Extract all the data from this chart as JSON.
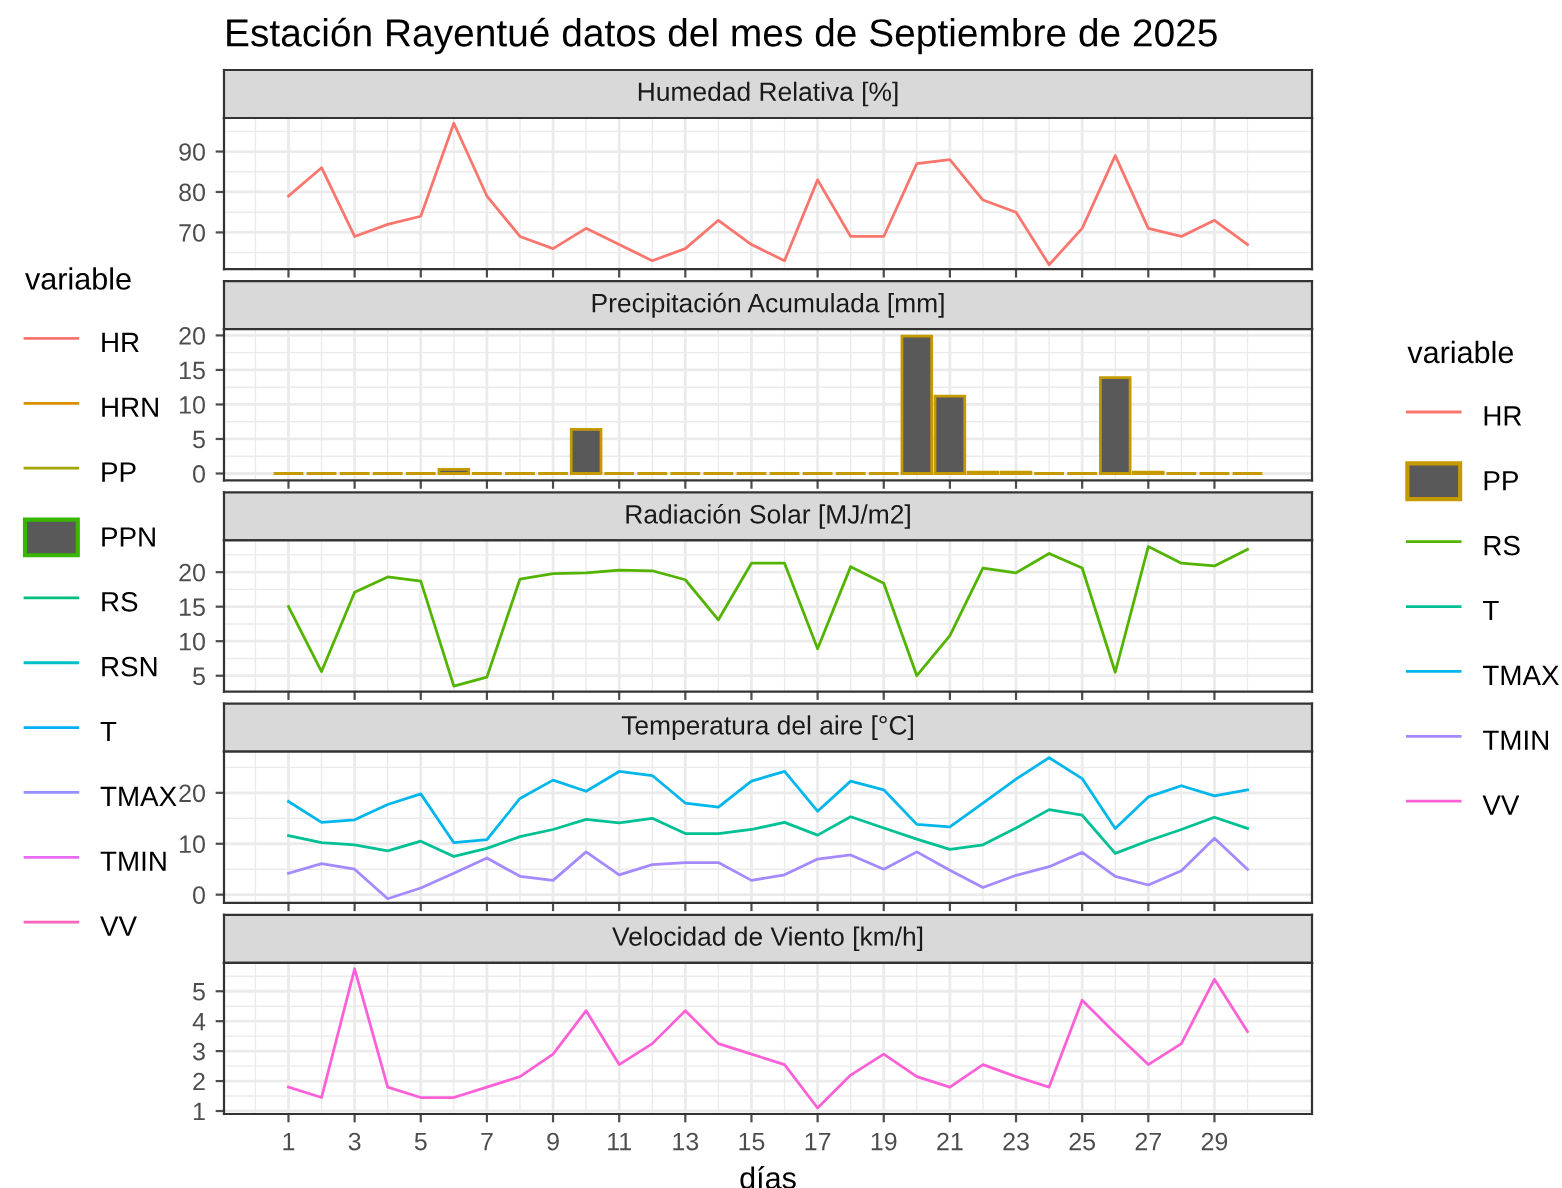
{
  "chart_data": [
    {
      "type": "other",
      "title": "Estación Rayentué datos del mes de Septiembre de 2025",
      "legend_title": "variable",
      "legend": "left",
      "series": [
        {
          "name": "HR",
          "color": "#f8766d",
          "type": "line"
        },
        {
          "name": "HRN",
          "color": "#d89000",
          "type": "line"
        },
        {
          "name": "PP",
          "color": "#a3a500",
          "type": "line"
        },
        {
          "name": "PPN",
          "color": "#39b600",
          "type": "bar"
        },
        {
          "name": "RS",
          "color": "#00bf7d",
          "type": "line"
        },
        {
          "name": "RSN",
          "color": "#00bfc4",
          "type": "line"
        },
        {
          "name": "T",
          "color": "#00b0f6",
          "type": "line"
        },
        {
          "name": "TMAX",
          "color": "#9590ff",
          "type": "line"
        },
        {
          "name": "TMIN",
          "color": "#e76bf3",
          "type": "line"
        },
        {
          "name": "VV",
          "color": "#ff62bc",
          "type": "line"
        }
      ]
    },
    {
      "type": "line",
      "title": "Humedad Relativa [%]",
      "legend_title": "variable",
      "legend": "right",
      "grid": true,
      "tick_labels": "y",
      "x": [
        1,
        2,
        3,
        4,
        5,
        6,
        7,
        8,
        9,
        10,
        11,
        12,
        13,
        14,
        15,
        16,
        17,
        18,
        19,
        20,
        21,
        22,
        23,
        24,
        25,
        26,
        27,
        28,
        29,
        30
      ],
      "xlim": [
        -0.95,
        31.95
      ],
      "xticks": [
        1,
        3,
        5,
        7,
        9,
        11,
        13,
        15,
        17,
        19,
        21,
        23,
        25,
        27,
        29
      ],
      "ylim": [
        60.9,
        98.3
      ],
      "yticks": [
        70,
        80,
        90
      ],
      "series": [
        {
          "name": "HR",
          "color": "#f8766d",
          "values": [
            79,
            86,
            69,
            72,
            74,
            97,
            79,
            69,
            66,
            71,
            67,
            63,
            66,
            73,
            67,
            63,
            83,
            69,
            69,
            87,
            88,
            78,
            75,
            62,
            71,
            89,
            71,
            69,
            73,
            67
          ]
        }
      ]
    },
    {
      "type": "bar",
      "title": "Precipitación Acumulada [mm]",
      "legend": "right",
      "grid": true,
      "tick_labels": "y",
      "x": [
        1,
        2,
        3,
        4,
        5,
        6,
        7,
        8,
        9,
        10,
        11,
        12,
        13,
        14,
        15,
        16,
        17,
        18,
        19,
        20,
        21,
        22,
        23,
        24,
        25,
        26,
        27,
        28,
        29,
        30
      ],
      "xlim": [
        -0.95,
        31.95
      ],
      "xticks": [
        1,
        3,
        5,
        7,
        9,
        11,
        13,
        15,
        17,
        19,
        21,
        23,
        25,
        27,
        29
      ],
      "ylim": [
        -1.0,
        20.9
      ],
      "yticks": [
        0,
        5,
        10,
        15,
        20
      ],
      "series": [
        {
          "name": "PP",
          "color": "#c49a00",
          "values": [
            0,
            0,
            0,
            0,
            0,
            0.6,
            0,
            0,
            0,
            6.4,
            0,
            0,
            0,
            0,
            0,
            0,
            0,
            0,
            0,
            19.9,
            11.2,
            0.2,
            0.2,
            0,
            0,
            13.9,
            0.2,
            0,
            0,
            0
          ]
        }
      ]
    },
    {
      "type": "line",
      "title": "Radiación Solar [MJ/m2]",
      "legend": "right",
      "grid": true,
      "tick_labels": "y",
      "x": [
        1,
        2,
        3,
        4,
        5,
        6,
        7,
        8,
        9,
        10,
        11,
        12,
        13,
        14,
        15,
        16,
        17,
        18,
        19,
        20,
        21,
        22,
        23,
        24,
        25,
        26,
        27,
        28,
        29,
        30
      ],
      "xlim": [
        -0.95,
        31.95
      ],
      "xticks": [
        1,
        3,
        5,
        7,
        9,
        11,
        13,
        15,
        17,
        19,
        21,
        23,
        25,
        27,
        29
      ],
      "ylim": [
        2.7,
        24.6
      ],
      "yticks": [
        5,
        10,
        15,
        20
      ],
      "series": [
        {
          "name": "RS",
          "color": "#53b400",
          "values": [
            15.0,
            5.6,
            17.1,
            19.3,
            18.7,
            3.5,
            4.8,
            19.0,
            19.8,
            19.9,
            20.3,
            20.2,
            18.9,
            13.1,
            21.3,
            21.3,
            8.9,
            20.8,
            18.4,
            5.0,
            10.8,
            20.6,
            19.9,
            22.7,
            20.6,
            5.5,
            23.7,
            21.3,
            20.9,
            23.3
          ]
        }
      ]
    },
    {
      "type": "line",
      "title": "Temperatura del aire [°C]",
      "legend": "right",
      "grid": true,
      "tick_labels": "y",
      "x": [
        1,
        2,
        3,
        4,
        5,
        6,
        7,
        8,
        9,
        10,
        11,
        12,
        13,
        14,
        15,
        16,
        17,
        18,
        19,
        20,
        21,
        22,
        23,
        24,
        25,
        26,
        27,
        28,
        29,
        30
      ],
      "xlim": [
        -0.95,
        31.95
      ],
      "xticks": [
        1,
        3,
        5,
        7,
        9,
        11,
        13,
        15,
        17,
        19,
        21,
        23,
        25,
        27,
        29
      ],
      "ylim": [
        -1.6,
        28.1
      ],
      "yticks": [
        0,
        10,
        20
      ],
      "series": [
        {
          "name": "T",
          "color": "#00c094",
          "values": [
            11.6,
            10.2,
            9.8,
            8.6,
            10.5,
            7.5,
            9.1,
            11.4,
            12.8,
            14.8,
            14.1,
            15.0,
            12.0,
            12.0,
            12.8,
            14.2,
            11.7,
            15.3,
            13.1,
            10.9,
            8.9,
            9.8,
            13.1,
            16.7,
            15.6,
            8.1,
            10.6,
            12.8,
            15.2,
            13.0
          ]
        },
        {
          "name": "TMAX",
          "color": "#00b6eb",
          "values": [
            18.3,
            14.2,
            14.7,
            17.7,
            19.8,
            10.2,
            10.8,
            18.9,
            22.5,
            20.3,
            24.2,
            23.4,
            18.0,
            17.2,
            22.3,
            24.2,
            16.4,
            22.3,
            20.6,
            13.8,
            13.3,
            18.0,
            22.7,
            26.9,
            22.8,
            13.0,
            19.2,
            21.4,
            19.4,
            20.6
          ]
        },
        {
          "name": "TMIN",
          "color": "#a58aff",
          "values": [
            4.2,
            6.1,
            5.0,
            -0.8,
            1.3,
            4.2,
            7.2,
            3.6,
            2.8,
            8.4,
            3.9,
            5.9,
            6.3,
            6.3,
            2.8,
            3.9,
            7.0,
            7.8,
            5.0,
            8.4,
            4.8,
            1.4,
            3.8,
            5.5,
            8.3,
            3.6,
            1.9,
            4.7,
            11.1,
            5.0
          ]
        }
      ]
    },
    {
      "type": "line",
      "title": "Velocidad de Viento [km/h]",
      "xlabel": "días",
      "legend": "right",
      "grid": true,
      "x": [
        1,
        2,
        3,
        4,
        5,
        6,
        7,
        8,
        9,
        10,
        11,
        12,
        13,
        14,
        15,
        16,
        17,
        18,
        19,
        20,
        21,
        22,
        23,
        24,
        25,
        26,
        27,
        28,
        29,
        30
      ],
      "xlim": [
        -0.95,
        31.95
      ],
      "xticks": [
        1,
        3,
        5,
        7,
        9,
        11,
        13,
        15,
        17,
        19,
        21,
        23,
        25,
        27,
        29
      ],
      "ylim": [
        0.9,
        5.95
      ],
      "yticks": [
        1,
        2,
        3,
        4,
        5
      ],
      "series": [
        {
          "name": "VV",
          "color": "#fb61d7",
          "values": [
            1.8,
            1.45,
            5.75,
            1.8,
            1.45,
            1.45,
            1.8,
            2.15,
            2.9,
            4.35,
            2.55,
            3.25,
            4.35,
            3.25,
            2.9,
            2.55,
            1.1,
            2.2,
            2.9,
            2.15,
            1.8,
            2.55,
            2.15,
            1.8,
            4.7,
            3.6,
            2.55,
            3.25,
            5.4,
            3.65
          ]
        }
      ]
    }
  ]
}
